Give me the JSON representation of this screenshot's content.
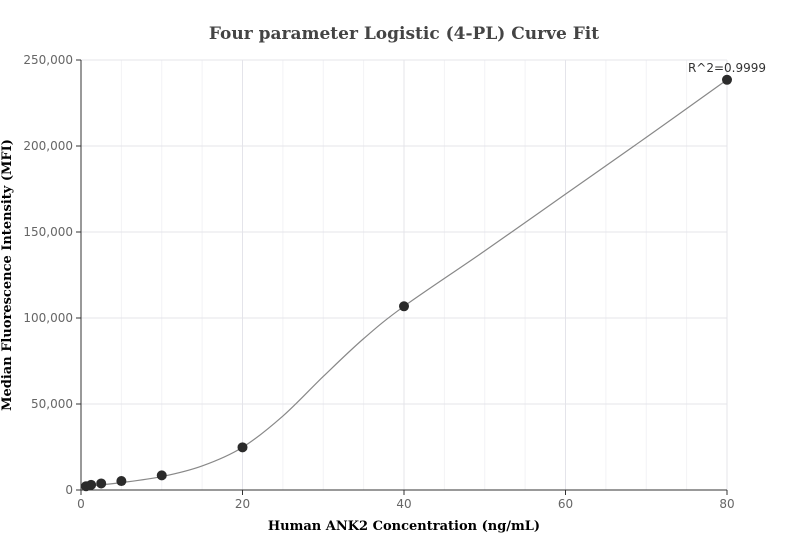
{
  "chart_data": {
    "type": "scatter",
    "title": "Four parameter Logistic (4-PL) Curve Fit",
    "xlabel": "Human ANK2 Concentration (ng/mL)",
    "ylabel": "Median Fluorescence Intensity (MFI)",
    "xlim": [
      0,
      80
    ],
    "ylim": [
      0,
      250000
    ],
    "xticks": [
      0,
      20,
      40,
      60,
      80
    ],
    "yticks": [
      0,
      50000,
      100000,
      150000,
      200000,
      250000
    ],
    "xtick_labels": [
      "0",
      "20",
      "40",
      "60",
      "80"
    ],
    "ytick_labels": [
      "0",
      "50,000",
      "100,000",
      "150,000",
      "200,000",
      "250,000"
    ],
    "grid": true,
    "points": [
      {
        "x": 0.625,
        "y": 2200
      },
      {
        "x": 1.25,
        "y": 3000
      },
      {
        "x": 2.5,
        "y": 3800
      },
      {
        "x": 5,
        "y": 5200
      },
      {
        "x": 10,
        "y": 8500
      },
      {
        "x": 20,
        "y": 24800
      },
      {
        "x": 40,
        "y": 106800
      },
      {
        "x": 80,
        "y": 238500
      }
    ],
    "fit_curve": [
      {
        "x": 0.625,
        "y": 2200
      },
      {
        "x": 5,
        "y": 4300
      },
      {
        "x": 10,
        "y": 7800
      },
      {
        "x": 15,
        "y": 14000
      },
      {
        "x": 20,
        "y": 24800
      },
      {
        "x": 25,
        "y": 43000
      },
      {
        "x": 30,
        "y": 66000
      },
      {
        "x": 35,
        "y": 88000
      },
      {
        "x": 40,
        "y": 106800
      },
      {
        "x": 50,
        "y": 139000
      },
      {
        "x": 60,
        "y": 172000
      },
      {
        "x": 70,
        "y": 205000
      },
      {
        "x": 80,
        "y": 238500
      }
    ],
    "annotation": "R^2=0.9999",
    "colors": {
      "point": "#2b2b2b",
      "curve": "#888888"
    }
  }
}
